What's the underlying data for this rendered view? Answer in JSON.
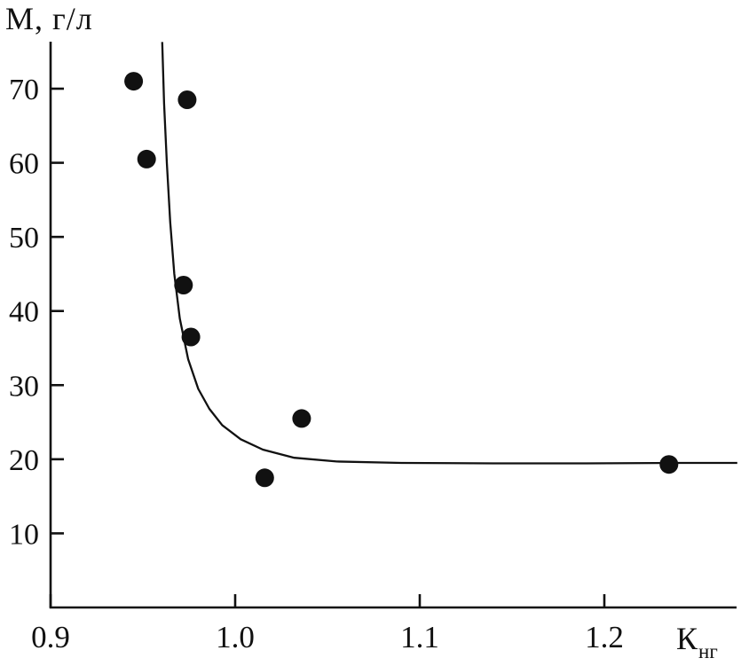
{
  "chart_data": {
    "type": "scatter",
    "title": "",
    "ylabel": "М, г/л",
    "xlabel_main": "К",
    "xlabel_sub": "нг",
    "xlim": [
      0.9,
      1.272
    ],
    "ylim": [
      0,
      76.3
    ],
    "grid": false,
    "legend": null,
    "axis_color": "#111111",
    "point_color": "#111111",
    "curve_color": "#111111",
    "x_ticks": [
      {
        "value": 0.9,
        "label": "0.9"
      },
      {
        "value": 1.0,
        "label": "1.0"
      },
      {
        "value": 1.1,
        "label": "1.1"
      },
      {
        "value": 1.2,
        "label": "1.2"
      }
    ],
    "y_ticks": [
      {
        "value": 10,
        "label": "10"
      },
      {
        "value": 20,
        "label": "20"
      },
      {
        "value": 30,
        "label": "30"
      },
      {
        "value": 40,
        "label": "40"
      },
      {
        "value": 50,
        "label": "50"
      },
      {
        "value": 60,
        "label": "60"
      },
      {
        "value": 70,
        "label": "70"
      }
    ],
    "points": [
      {
        "x": 0.945,
        "y": 71.0
      },
      {
        "x": 0.952,
        "y": 60.5
      },
      {
        "x": 0.974,
        "y": 68.5
      },
      {
        "x": 0.972,
        "y": 43.5
      },
      {
        "x": 0.976,
        "y": 36.5
      },
      {
        "x": 1.016,
        "y": 17.5
      },
      {
        "x": 1.036,
        "y": 25.5
      },
      {
        "x": 1.235,
        "y": 19.3
      }
    ],
    "curve": [
      [
        0.9605,
        76.3
      ],
      [
        0.9615,
        68.0
      ],
      [
        0.963,
        60.0
      ],
      [
        0.9648,
        52.0
      ],
      [
        0.967,
        45.0
      ],
      [
        0.97,
        39.0
      ],
      [
        0.9745,
        33.5
      ],
      [
        0.98,
        29.5
      ],
      [
        0.986,
        26.8
      ],
      [
        0.993,
        24.6
      ],
      [
        1.003,
        22.7
      ],
      [
        1.015,
        21.3
      ],
      [
        1.032,
        20.2
      ],
      [
        1.055,
        19.7
      ],
      [
        1.09,
        19.5
      ],
      [
        1.14,
        19.45
      ],
      [
        1.19,
        19.45
      ],
      [
        1.24,
        19.5
      ],
      [
        1.272,
        19.5
      ]
    ]
  }
}
